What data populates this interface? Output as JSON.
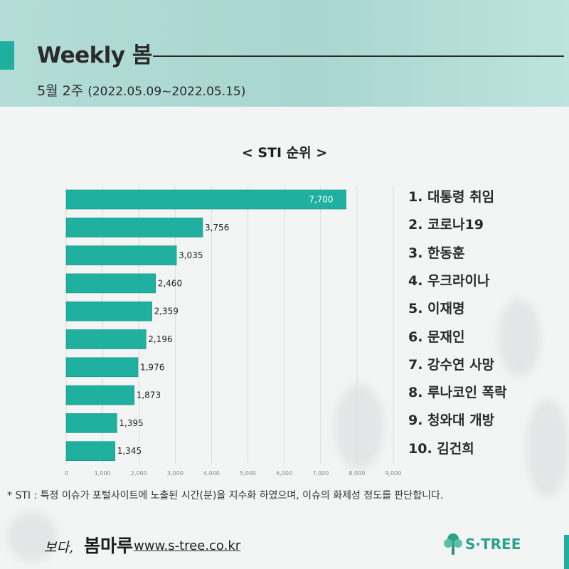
{
  "header": {
    "title": "Weekly 봄",
    "week_label": "5월 2주",
    "week_range": "(2022.05.09~2022.05.15)"
  },
  "colors": {
    "accent": "#1eaf9f",
    "bar": "#20b09f",
    "header_bg": "#b0dbd5"
  },
  "chart_data": {
    "type": "bar",
    "orientation": "horizontal",
    "title": "< STI 순위 >",
    "categories": [
      "대통령 취임",
      "코로나19",
      "한동훈",
      "우크라이나",
      "이재명",
      "문재인",
      "강수연 사망",
      "루나코인 폭락",
      "청와대 개방",
      "김건희"
    ],
    "values": [
      7700,
      3756,
      3035,
      2460,
      2359,
      2196,
      1976,
      1873,
      1395,
      1345
    ],
    "value_labels": [
      "7,700",
      "3,756",
      "3,035",
      "2,460",
      "2,359",
      "2,196",
      "1,976",
      "1,873",
      "1,395",
      "1,345"
    ],
    "x_ticks": [
      0,
      1000,
      2000,
      3000,
      4000,
      5000,
      6000,
      7000,
      8000,
      9000
    ],
    "x_tick_labels": [
      "0",
      "1,000",
      "2,000",
      "3,000",
      "4,000",
      "5,000",
      "6,000",
      "7,000",
      "8,000",
      "9,000"
    ],
    "xlim": [
      0,
      9000
    ],
    "grid": true,
    "legend": "none"
  },
  "ranking": [
    "1. 대통령 취임",
    "2. 코로나19",
    "3. 한동훈",
    "4. 우크라이나",
    "5. 이재명",
    "6. 문재인",
    "7. 강수연 사망",
    "8. 루나코인 폭락",
    "9. 청와대 개방",
    "10. 김건희"
  ],
  "note": "* STI : 특정 이슈가 포털사이트에 노출된 시간(분)을 지수화 하였으며, 이슈의 화제성 정도를 판단합니다.",
  "footer": {
    "brand_small": "보다,",
    "brand_script": "봄마루",
    "url": "www.s-tree.co.kr",
    "logo_text": "S·TREE",
    "logo_icon": "tree-icon"
  }
}
